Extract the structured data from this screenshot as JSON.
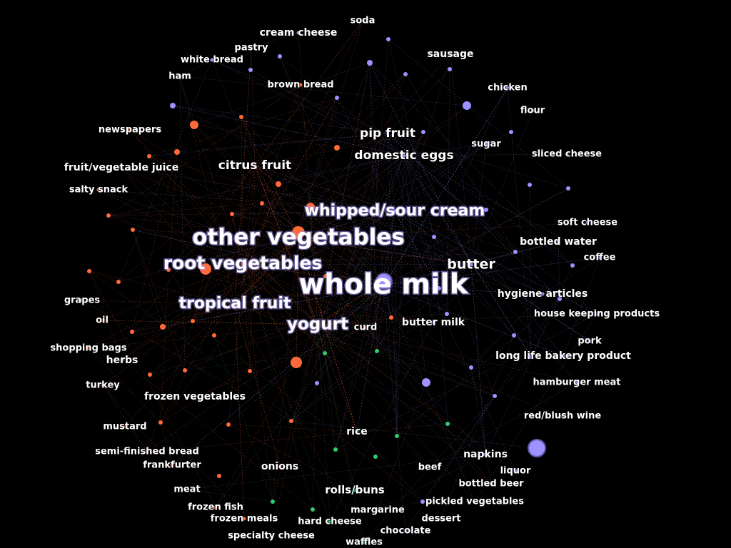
{
  "colors": {
    "background": "#000000",
    "label": "#ffffff",
    "cluster_orange": "#ff6a3a",
    "cluster_purple": "#9d92ff",
    "cluster_green": "#2ecc71",
    "edge_orange": "#d9623a",
    "edge_purple": "#8a80e0",
    "edge_green": "#2f9a5a"
  },
  "labels": [
    "soda",
    "cream cheese",
    "pastry",
    "white bread",
    "ham",
    "brown bread",
    "sausage",
    "chicken",
    "flour",
    "newspapers",
    "pip fruit",
    "domestic eggs",
    "sugar",
    "sliced cheese",
    "fruit/vegetable juice",
    "citrus fruit",
    "salty snack",
    "whipped/sour cream",
    "other vegetables",
    "soft cheese",
    "bottled water",
    "coffee",
    "root vegetables",
    "butter",
    "whole milk",
    "hygiene articles",
    "grapes",
    "tropical fruit",
    "house keeping products",
    "oil",
    "yogurt",
    "curd",
    "butter milk",
    "pork",
    "shopping bags",
    "herbs",
    "long life bakery product",
    "turkey",
    "hamburger meat",
    "frozen vegetables",
    "red/blush wine",
    "mustard",
    "rice",
    "semi-finished bread",
    "napkins",
    "frankfurter",
    "onions",
    "beef",
    "liquor",
    "bottled beer",
    "meat",
    "rolls/buns",
    "pickled vegetables",
    "frozen fish",
    "margarine",
    "frozen meals",
    "dessert",
    "hard cheese",
    "chocolate",
    "specialty cheese",
    "waffles"
  ]
}
